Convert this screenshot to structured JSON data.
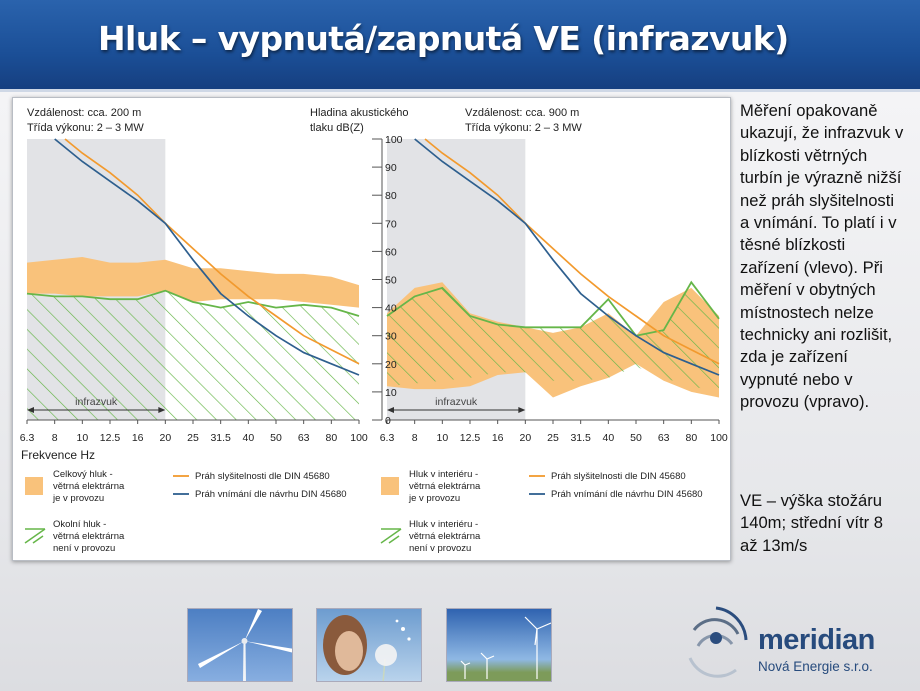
{
  "slide": {
    "title": "Hluk – vypnutá/zapnutá VE (infrazvuk)",
    "side_text": "Měření opakovaně\nukazují, že infrazvuk v\nblízkosti větrných\nturbín je výrazně nižší\nnež práh slyšitelnosti\na vnímání. To platí i v\ntěsné blízkosti\nzařízení (vlevo). Při\nměření v obytných\nmístnostech nelze\ntechnicky ani rozlišit,\nzda je zařízení\nvypnuté nebo v\nprovozu (vpravo).",
    "side_text2": "VE – výška stožáru\n140m; střední vítr 8\naž 13m/s"
  },
  "logo": {
    "name": "meridian",
    "subtitle": "Nová Energie s.r.o."
  },
  "colors": {
    "orange_fill": "#f9c27b",
    "orange_line": "#f29a2e",
    "blue_line": "#2e5f8e",
    "green_line": "#66b649",
    "grey_band": "#e2e3e6",
    "title_bar": "#1e56a0"
  },
  "chart_data": [
    {
      "type": "area",
      "header_line1": "Vzdálenost: cca. 200 m",
      "header_line2": "Třída výkonu: 2 – 3 MW",
      "xlabel": "Frekvence Hz",
      "band_label": "infrazvuk",
      "categories": [
        "6.3",
        "8",
        "10",
        "12.5",
        "16",
        "20",
        "25",
        "31.5",
        "40",
        "50",
        "63",
        "80",
        "100"
      ],
      "ylim": [
        0,
        100
      ],
      "bands": [
        {
          "name": "Celkový hluk - větrná elektrárna je v provozu",
          "lower": [
            45,
            45,
            44,
            44,
            44,
            46,
            42,
            43,
            43,
            43,
            42,
            41,
            40
          ],
          "upper": [
            56,
            57,
            58,
            56,
            56,
            57,
            54,
            54,
            53,
            52,
            52,
            51,
            48
          ]
        },
        {
          "name": "Okolní hluk - větrná elektrárna není v provozu",
          "lower": [
            0,
            0,
            0,
            0,
            0,
            0,
            0,
            0,
            0,
            0,
            0,
            0,
            0
          ],
          "upper": [
            45,
            44,
            44,
            43,
            43,
            46,
            42,
            40,
            42,
            40,
            41,
            40,
            37
          ]
        }
      ],
      "series": [
        {
          "name": "Práh slyšitelnosti dle DIN 45680",
          "values": [
            null,
            103,
            95,
            88,
            80,
            70,
            61,
            52,
            44,
            37,
            30,
            25,
            20
          ]
        },
        {
          "name": "Práh vnímání dle návrhu DIN 45680",
          "values": [
            null,
            100,
            92,
            85,
            78,
            70,
            57,
            45,
            37,
            30,
            24,
            20,
            16
          ]
        }
      ]
    },
    {
      "type": "area",
      "header_line1": "Vzdálenost: cca. 900 m",
      "header_line2": "Třída výkonu: 2 – 3 MW",
      "ylabel": "Hladina akustického tlaku dB(Z)",
      "band_label": "infrazvuk",
      "categories": [
        "6.3",
        "8",
        "10",
        "12.5",
        "16",
        "20",
        "25",
        "31.5",
        "40",
        "50",
        "63",
        "80",
        "100"
      ],
      "ylim": [
        0,
        100
      ],
      "yticks": [
        0,
        10,
        20,
        30,
        40,
        50,
        60,
        70,
        80,
        90,
        100
      ],
      "bands": [
        {
          "name": "Hluk v interiéru - větrná elektrárna je v provozu",
          "lower": [
            12,
            11,
            11,
            12,
            16,
            17,
            8,
            12,
            15,
            20,
            14,
            10,
            8
          ],
          "upper": [
            38,
            47,
            49,
            38,
            35,
            33,
            31,
            33,
            38,
            30,
            42,
            47,
            37
          ]
        },
        {
          "name": "Hluk v interiéru - větrná elektrárna není v provozu",
          "lower": [
            12,
            13,
            14,
            15,
            17,
            17,
            14,
            14,
            15,
            19,
            15,
            12,
            10
          ],
          "upper": [
            37,
            44,
            47,
            37,
            34,
            33,
            33,
            33,
            43,
            30,
            32,
            49,
            36
          ]
        }
      ],
      "series": [
        {
          "name": "Práh slyšitelnosti dle DIN 45680",
          "values": [
            null,
            103,
            95,
            88,
            80,
            70,
            61,
            52,
            44,
            37,
            30,
            25,
            20
          ]
        },
        {
          "name": "Práh vnímání dle návrhu DIN 45680",
          "values": [
            null,
            100,
            92,
            85,
            78,
            70,
            57,
            45,
            37,
            30,
            24,
            20,
            16
          ]
        }
      ]
    }
  ],
  "legend": {
    "left": [
      {
        "key": "celkovy",
        "lines": [
          "Celkový hluk -",
          "větrná elektrárna",
          "je v provozu"
        ]
      },
      {
        "key": "okolni",
        "lines": [
          "Okolní hluk -",
          "větrná elektrárna",
          "není v provozu"
        ]
      }
    ],
    "right": [
      {
        "key": "interier_on",
        "lines": [
          "Hluk v interiéru -",
          "větrná elektrárna",
          "je v provozu"
        ]
      },
      {
        "key": "interier_off",
        "lines": [
          "Hluk v interiéru -",
          "větrná elektrárna",
          "není v provozu"
        ]
      }
    ],
    "prah_sly": "Práh slyšitelnosti dle DIN 45680",
    "prah_vni": "Práh vnímání dle návrhu DIN 45680"
  }
}
